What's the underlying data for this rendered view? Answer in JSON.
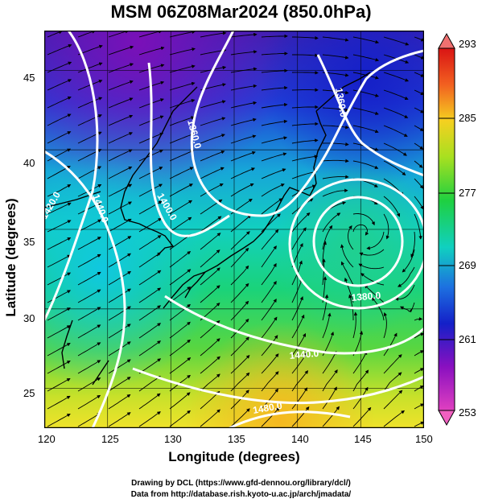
{
  "title": "MSM 06Z08Mar2024 (850.0hPa)",
  "xlabel": "Longitude (degrees)",
  "ylabel": "Latitude  (degrees)",
  "x_ticks": [
    "120",
    "125",
    "130",
    "135",
    "140",
    "145",
    "150"
  ],
  "y_ticks": [
    "25",
    "30",
    "35",
    "40",
    "45"
  ],
  "colorbar": {
    "min": "253",
    "max": "293",
    "ticks": [
      "293",
      "285",
      "277",
      "269",
      "261",
      "253"
    ]
  },
  "contour_labels": [
    "1420.0",
    "1440.0",
    "1400.0",
    "1360.0",
    "1360.0",
    "1380.0",
    "1440.0",
    "1480.0"
  ],
  "credits": {
    "line1": "Drawing by DCL (https://www.gfd-dennou.org/library/dcl/)",
    "line2": "Data from http://database.rish.kyoto-u.ac.jp/arch/jmadata/"
  },
  "map": {
    "lon_range": [
      120,
      150
    ],
    "lat_range": [
      22.5,
      47.5
    ],
    "low_center_lonlat": [
      145,
      35
    ]
  }
}
